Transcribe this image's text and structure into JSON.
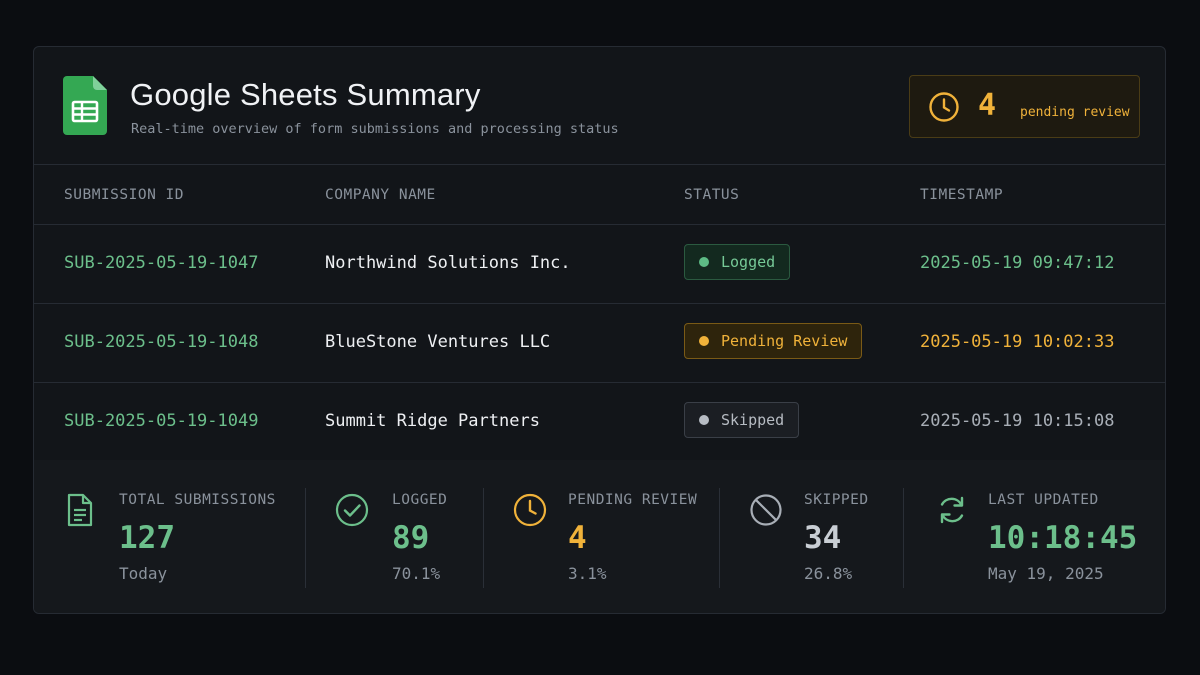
{
  "header": {
    "title": "Google Sheets Summary",
    "subtitle": "Real-time overview of form submissions and processing status",
    "pending_count": "4",
    "pending_label": "pending review"
  },
  "table": {
    "columns": [
      "SUBMISSION ID",
      "COMPANY NAME",
      "STATUS",
      "TIMESTAMP"
    ],
    "rows": [
      {
        "id": "SUB-2025-05-19-1047",
        "company": "Northwind Solutions Inc.",
        "status": "Logged",
        "timestamp": "2025-05-19 09:47:12"
      },
      {
        "id": "SUB-2025-05-19-1048",
        "company": "BlueStone Ventures LLC",
        "status": "Pending Review",
        "timestamp": "2025-05-19 10:02:33"
      },
      {
        "id": "SUB-2025-05-19-1049",
        "company": "Summit Ridge Partners",
        "status": "Skipped",
        "timestamp": "2025-05-19 10:15:08"
      }
    ]
  },
  "stats": [
    {
      "label": "TOTAL SUBMISSIONS",
      "value": "127",
      "sub": "Today",
      "icon": "document-icon",
      "color": "#6cbf8b"
    },
    {
      "label": "LOGGED",
      "value": "89",
      "sub": "70.1%",
      "icon": "check-circle-icon",
      "color": "#6cbf8b"
    },
    {
      "label": "PENDING REVIEW",
      "value": "4",
      "sub": "3.1%",
      "icon": "clock-icon",
      "color": "#f0b23a"
    },
    {
      "label": "SKIPPED",
      "value": "34",
      "sub": "26.8%",
      "icon": "skip-icon",
      "color": "#c9ced4"
    },
    {
      "label": "LAST UPDATED",
      "value": "10:18:45",
      "sub": "May 19, 2025",
      "icon": "refresh-icon",
      "color": "#6cbf8b"
    }
  ],
  "colors": {
    "accent_green": "#6cbf8b",
    "accent_amber": "#f0b23a",
    "sheets_green": "#34a853"
  }
}
